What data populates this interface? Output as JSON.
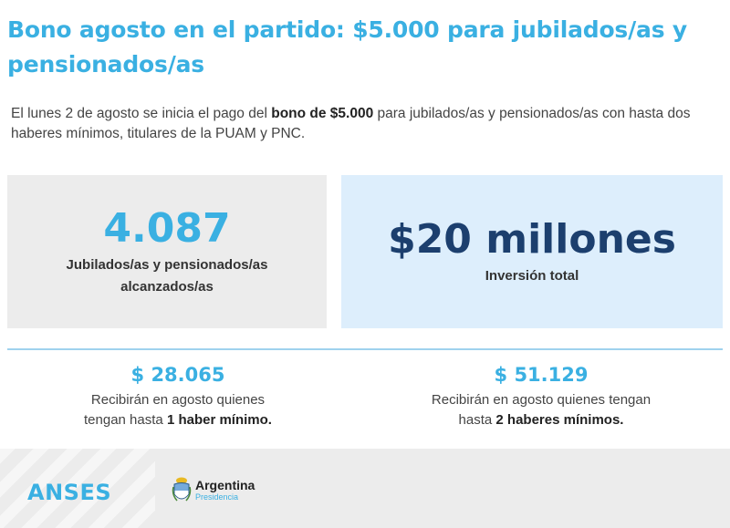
{
  "header": {
    "title": "Bono agosto en el partido: $5.000 para jubilados/as y pensionados/as"
  },
  "intro": {
    "text_before": "El lunes 2 de agosto se inicia el pago del ",
    "text_bold": "bono de $5.000",
    "text_after": " para jubilados/as y pensionados/as con hasta dos haberes mínimos, titulares de la PUAM y PNC."
  },
  "stats": {
    "reached_value": "4.087",
    "reached_label_line1": "Jubilados/as y pensionados/as",
    "reached_label_line2": "alcanzados/as",
    "investment_value": "$20 millones",
    "investment_label": "Inversión total"
  },
  "amounts": {
    "left": {
      "value": "$ 28.065",
      "line1": "Recibirán en agosto quienes",
      "line2_before": "tengan hasta ",
      "line2_bold": "1 haber mínimo."
    },
    "right": {
      "value": "$ 51.129",
      "line1": "Recibirán en agosto quienes tengan",
      "line2_before": "hasta ",
      "line2_bold": "2 haberes mínimos."
    }
  },
  "footer": {
    "anses_logo": "ANSES",
    "argentina_name": "Argentina",
    "argentina_sub": "Presidencia",
    "shield_icon": "coat-of-arms-icon"
  },
  "colors": {
    "accent_light_blue": "#3ab0e2",
    "accent_dark_blue": "#1c3f6e",
    "box_gray": "#ececec",
    "box_blue": "#ddeefc"
  }
}
